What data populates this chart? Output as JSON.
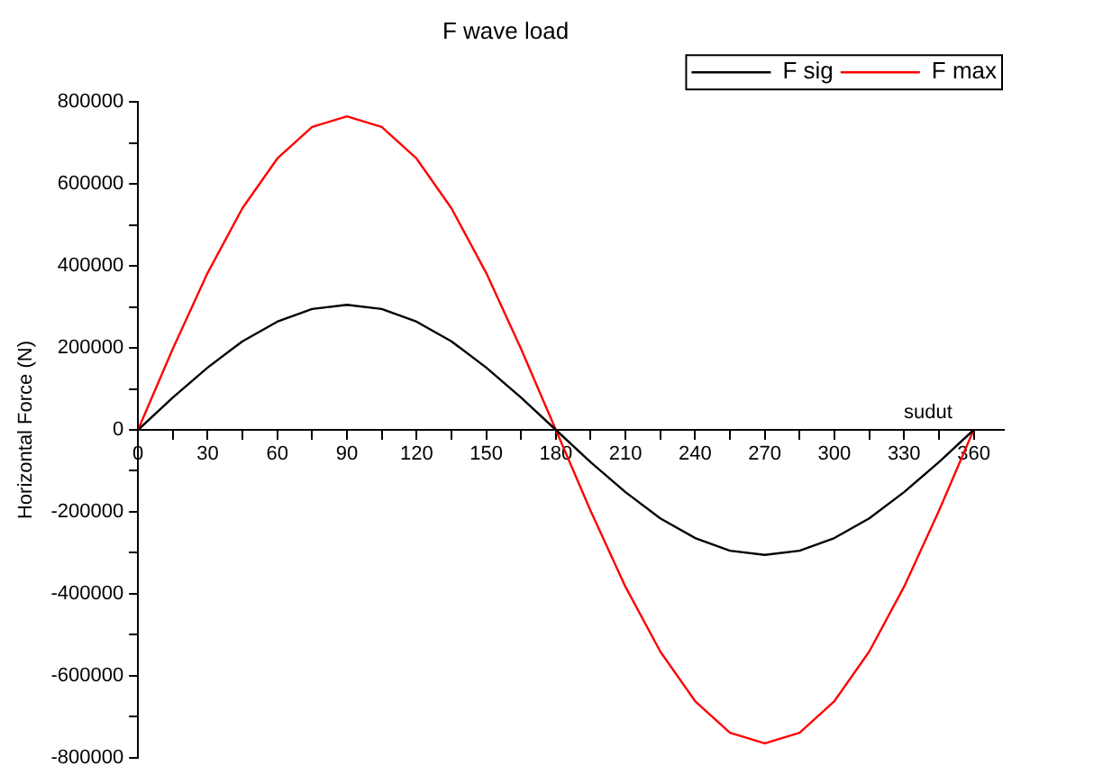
{
  "chart_data": {
    "type": "line",
    "title": "F wave load",
    "xlabel": "sudut",
    "ylabel": "Horizontal Force (N)",
    "x": [
      0,
      15,
      30,
      45,
      60,
      75,
      90,
      105,
      120,
      135,
      150,
      165,
      180,
      195,
      210,
      225,
      240,
      255,
      270,
      285,
      300,
      315,
      330,
      345,
      360
    ],
    "series": [
      {
        "name": "F sig",
        "color": "#000000",
        "values": [
          0,
          79000,
          152000,
          216000,
          264000,
          295000,
          305000,
          295000,
          264000,
          216000,
          152000,
          79000,
          0,
          -79000,
          -152000,
          -216000,
          -264000,
          -295000,
          -305000,
          -295000,
          -264000,
          -216000,
          -152000,
          -79000,
          0
        ]
      },
      {
        "name": "F max",
        "color": "#ff0000",
        "values": [
          0,
          198000,
          383000,
          541000,
          662000,
          739000,
          765000,
          739000,
          662000,
          541000,
          383000,
          198000,
          0,
          -198000,
          -383000,
          -541000,
          -662000,
          -739000,
          -765000,
          -739000,
          -662000,
          -541000,
          -383000,
          -198000,
          0
        ]
      }
    ],
    "xlim": [
      0,
      373
    ],
    "xticks": [
      0,
      {
        "value": 15,
        "label": null
      },
      30,
      {
        "value": 45,
        "label": null
      },
      60,
      {
        "value": 75,
        "label": null
      },
      90,
      {
        "value": 105,
        "label": null
      },
      120,
      {
        "value": 135,
        "label": null
      },
      150,
      {
        "value": 165,
        "label": null
      },
      180,
      {
        "value": 195,
        "label": null
      },
      210,
      {
        "value": 225,
        "label": null
      },
      240,
      {
        "value": 255,
        "label": null
      },
      270,
      {
        "value": 285,
        "label": null
      },
      300,
      {
        "value": 315,
        "label": null
      },
      330,
      {
        "value": 345,
        "label": null
      },
      360
    ],
    "ylim": [
      -800000,
      800000
    ],
    "yticks": [
      -800000,
      {
        "value": -700000,
        "label": null
      },
      -600000,
      {
        "value": -500000,
        "label": null
      },
      -400000,
      {
        "value": -300000,
        "label": null
      },
      -200000,
      {
        "value": -100000,
        "label": null
      },
      0,
      {
        "value": 100000,
        "label": null
      },
      200000,
      {
        "value": 300000,
        "label": null
      },
      400000,
      {
        "value": 500000,
        "label": null
      },
      600000,
      {
        "value": 700000,
        "label": null
      },
      800000
    ],
    "grid": false,
    "legend": "top right",
    "marker": "none",
    "line_style": "solid"
  }
}
